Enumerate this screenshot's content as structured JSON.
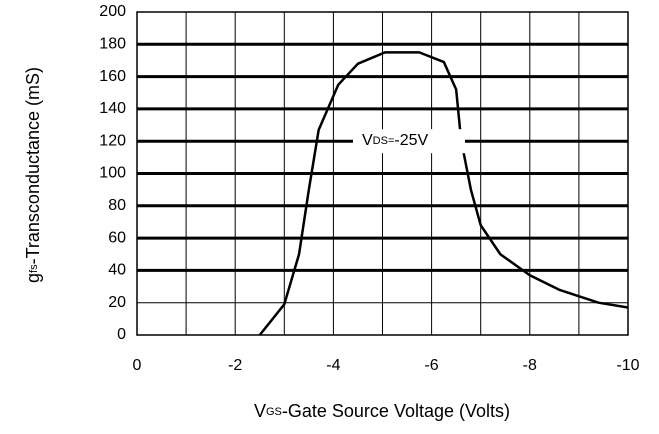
{
  "chart_data": {
    "type": "line",
    "x_label": {
      "main": "V",
      "sub": "GS",
      "rest": "-Gate Source Voltage (Volts)"
    },
    "y_label": {
      "main": "g",
      "sub": "fs",
      "rest": "-Transconductance (mS)"
    },
    "annotation": {
      "main": "V",
      "sub": "DS=",
      "rest": "-25V"
    },
    "xlim": [
      0,
      -10
    ],
    "xticks": [
      0,
      -2,
      -4,
      -6,
      -8,
      -10
    ],
    "ylim": [
      0,
      200
    ],
    "yticks": [
      0,
      20,
      40,
      60,
      80,
      100,
      120,
      140,
      160,
      180,
      200
    ],
    "grid": true,
    "series": [
      {
        "color": "#000000",
        "x": [
          -2.5,
          -3.0,
          -3.3,
          -3.5,
          -3.7,
          -4.1,
          -4.5,
          -5.05,
          -5.75,
          -6.25,
          -6.5,
          -6.6,
          -6.8,
          -7.0,
          -7.4,
          -8.0,
          -8.6,
          -9.4,
          -10
        ],
        "values": [
          0,
          19,
          50,
          90,
          127,
          155,
          168,
          175,
          175,
          169,
          152,
          121,
          90,
          68,
          50,
          37,
          28,
          20,
          17
        ]
      }
    ]
  }
}
